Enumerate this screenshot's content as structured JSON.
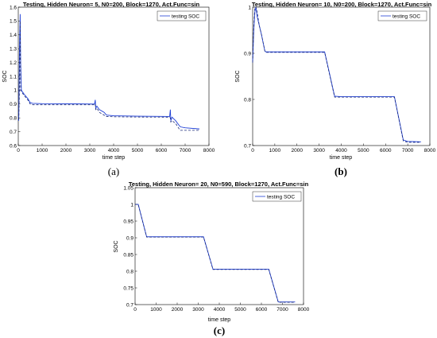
{
  "colors": {
    "series": "#1f3fd6",
    "series_dashed": "#1a2a7a",
    "axis": "#000000"
  },
  "chart_data": [
    {
      "panel": "(a)",
      "type": "line",
      "title": "Testing,   Hidden Neuron=  5, N0=200, Block=1270, Act.Func=sin",
      "xlabel": "time step",
      "ylabel": "SOC",
      "xlim": [
        0,
        8000
      ],
      "ylim": [
        0.6,
        1.6
      ],
      "xticks": [
        0,
        1000,
        2000,
        3000,
        4000,
        5000,
        6000,
        7000,
        8000
      ],
      "yticks": [
        0.6,
        0.7,
        0.8,
        0.9,
        1,
        1.1,
        1.2,
        1.3,
        1.4,
        1.5,
        1.6
      ],
      "ytick_labels": [
        "0.6",
        "0.7",
        "0.8",
        "0.9",
        "1",
        "1.1",
        "1.2",
        "1.3",
        "1.4",
        "1.5",
        "1.6"
      ],
      "legend": {
        "entries": [
          "testing SOC"
        ],
        "placement": "top-right"
      },
      "series": [
        {
          "name": "testing SOC",
          "style": "solid",
          "x": [
            0,
            20,
            50,
            80,
            100,
            130,
            170,
            250,
            400,
            500,
            600,
            1000,
            2000,
            3200,
            3230,
            3250,
            3300,
            3400,
            3600,
            3700,
            4000,
            5000,
            6350,
            6380,
            6400,
            6450,
            6600,
            6750,
            6800,
            7000,
            7600
          ],
          "y": [
            0.79,
            0.78,
            1.3,
            1.55,
            1.2,
            1.0,
            0.99,
            0.97,
            0.94,
            0.91,
            0.905,
            0.903,
            0.902,
            0.9,
            0.93,
            0.87,
            0.885,
            0.86,
            0.84,
            0.82,
            0.815,
            0.812,
            0.81,
            0.86,
            0.78,
            0.805,
            0.78,
            0.745,
            0.735,
            0.728,
            0.72
          ]
        },
        {
          "name": "",
          "style": "dashed",
          "x": [
            0,
            20,
            50,
            80,
            100,
            130,
            170,
            250,
            400,
            500,
            600,
            1000,
            2000,
            3200,
            3230,
            3250,
            3300,
            3400,
            3600,
            3700,
            4000,
            5000,
            6350,
            6380,
            6400,
            6450,
            6600,
            6750,
            6800,
            7000,
            7600
          ],
          "y": [
            0.79,
            0.79,
            1.0,
            1.5,
            1.0,
            0.99,
            0.98,
            0.96,
            0.93,
            0.9,
            0.895,
            0.895,
            0.895,
            0.895,
            0.9,
            0.86,
            0.87,
            0.84,
            0.82,
            0.81,
            0.808,
            0.806,
            0.805,
            0.8,
            0.77,
            0.78,
            0.76,
            0.72,
            0.71,
            0.71,
            0.71
          ]
        }
      ]
    },
    {
      "panel": "(b)",
      "type": "line",
      "title": "Testing,   Hidden Neuron= 10, N0=200, Block=1270, Act.Func=sin",
      "xlabel": "time step",
      "ylabel": "SOC",
      "xlim": [
        0,
        8000
      ],
      "ylim": [
        0.7,
        1.0
      ],
      "xticks": [
        0,
        1000,
        2000,
        3000,
        4000,
        5000,
        6000,
        7000,
        8000
      ],
      "yticks": [
        0.7,
        0.8,
        0.9,
        1
      ],
      "ytick_labels": [
        "0.7",
        "0.8",
        "0.9",
        "1"
      ],
      "legend": {
        "entries": [
          "testing SOC"
        ],
        "placement": "top-right"
      },
      "series": [
        {
          "name": "testing SOC",
          "style": "solid",
          "x": [
            0,
            50,
            100,
            150,
            200,
            300,
            400,
            550,
            600,
            1000,
            2000,
            3000,
            3250,
            3700,
            4000,
            5000,
            6000,
            6400,
            6800,
            7000,
            7600
          ],
          "y": [
            0.88,
            0.95,
            0.99,
            1.0,
            0.98,
            0.96,
            0.94,
            0.905,
            0.903,
            0.903,
            0.903,
            0.903,
            0.903,
            0.807,
            0.806,
            0.806,
            0.806,
            0.806,
            0.712,
            0.709,
            0.708
          ]
        },
        {
          "name": "",
          "style": "dashed",
          "x": [
            0,
            50,
            100,
            150,
            200,
            300,
            400,
            550,
            600,
            1000,
            2000,
            3000,
            3250,
            3700,
            4000,
            5000,
            6000,
            6400,
            6800,
            7000,
            7600
          ],
          "y": [
            0.88,
            0.96,
            1.0,
            1.0,
            0.99,
            0.96,
            0.94,
            0.905,
            0.902,
            0.902,
            0.902,
            0.902,
            0.902,
            0.805,
            0.805,
            0.805,
            0.805,
            0.805,
            0.71,
            0.707,
            0.707
          ]
        }
      ]
    },
    {
      "panel": "(c)",
      "type": "line",
      "title": "Testing,   Hidden Neuron= 20, N0=590, Block=1270, Act.Func=sin",
      "xlabel": "time step",
      "ylabel": "SOC",
      "xlim": [
        0,
        8000
      ],
      "ylim": [
        0.7,
        1.05
      ],
      "xticks": [
        0,
        1000,
        2000,
        3000,
        4000,
        5000,
        6000,
        7000,
        8000
      ],
      "yticks": [
        0.7,
        0.75,
        0.8,
        0.85,
        0.9,
        0.95,
        1,
        1.05
      ],
      "ytick_labels": [
        "0.7",
        "0.75",
        "0.8",
        "0.85",
        "0.9",
        "0.95",
        "1",
        "1.05"
      ],
      "legend": {
        "entries": [
          "testing SOC"
        ],
        "placement": "top-right"
      },
      "series": [
        {
          "name": "testing SOC",
          "style": "solid",
          "x": [
            0,
            150,
            550,
            1000,
            2000,
            3000,
            3250,
            3700,
            4000,
            5000,
            6000,
            6350,
            6800,
            7000,
            7600
          ],
          "y": [
            1.0,
            1.0,
            0.903,
            0.903,
            0.903,
            0.903,
            0.903,
            0.806,
            0.806,
            0.806,
            0.806,
            0.806,
            0.708,
            0.708,
            0.708
          ]
        },
        {
          "name": "",
          "style": "dashed",
          "x": [
            0,
            150,
            550,
            1000,
            2000,
            3000,
            3250,
            3700,
            4000,
            5000,
            6000,
            6350,
            6800,
            7000,
            7600
          ],
          "y": [
            1.0,
            1.0,
            0.902,
            0.902,
            0.902,
            0.902,
            0.902,
            0.805,
            0.805,
            0.805,
            0.805,
            0.805,
            0.707,
            0.707,
            0.707
          ]
        }
      ]
    }
  ]
}
